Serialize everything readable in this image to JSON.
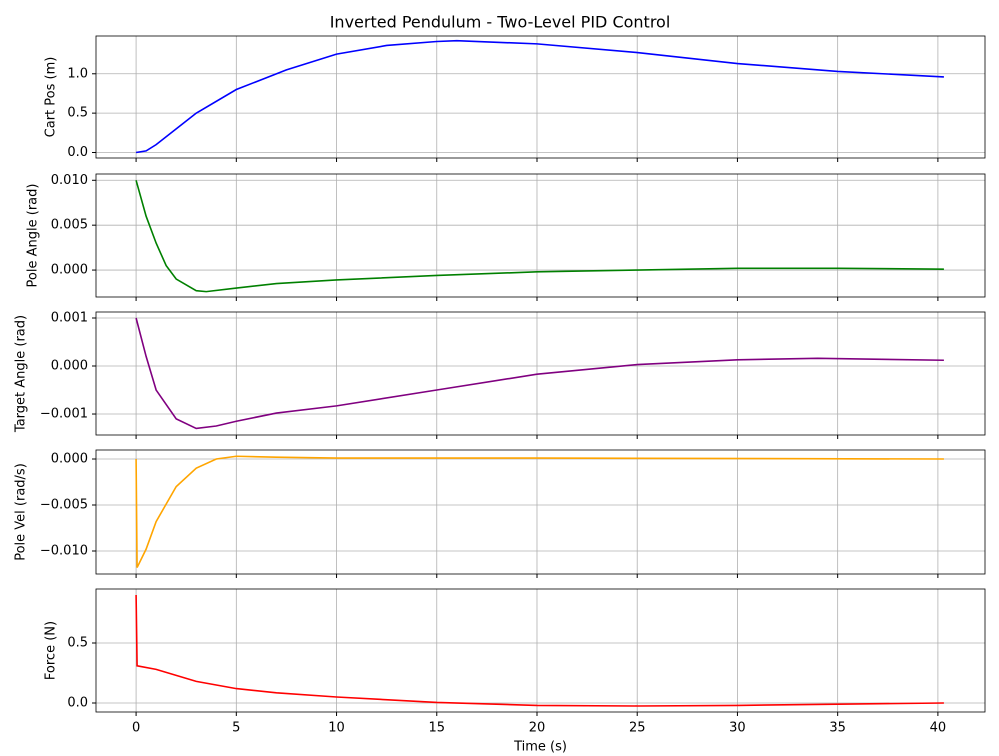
{
  "chart_data": [
    {
      "type": "line",
      "title": "Inverted Pendulum - Two-Level PID Control",
      "ylabel": "Cart Pos (m)",
      "color": "#0000ff",
      "grid": true,
      "x": [
        0,
        0.5,
        1,
        2,
        3,
        5,
        7.5,
        10,
        12.5,
        15,
        16,
        20,
        25,
        30,
        35,
        40.3
      ],
      "values": [
        0,
        0.02,
        0.1,
        0.3,
        0.5,
        0.8,
        1.05,
        1.25,
        1.36,
        1.41,
        1.42,
        1.38,
        1.27,
        1.13,
        1.03,
        0.96
      ],
      "xlim": [
        -2.0,
        42.35
      ],
      "xticks": [
        0,
        5,
        10,
        15,
        20,
        25,
        30,
        35,
        40
      ],
      "ylim": [
        -0.07,
        1.48
      ],
      "yticks": [
        {
          "value": 0,
          "label": "0.0"
        },
        {
          "value": 0.5,
          "label": "0.5"
        },
        {
          "value": 1,
          "label": "1.0"
        }
      ]
    },
    {
      "type": "line",
      "ylabel": "Pole Angle (rad)",
      "color": "#008000",
      "grid": true,
      "x": [
        0,
        0.5,
        1,
        1.5,
        2,
        3,
        3.5,
        5,
        7,
        10,
        15,
        20,
        25,
        30,
        35,
        40.3
      ],
      "values": [
        0.01,
        0.006,
        0.003,
        0.0005,
        -0.001,
        -0.0023,
        -0.0024,
        -0.002,
        -0.0015,
        -0.0011,
        -0.0006,
        -0.0002,
        0.0,
        0.0002,
        0.0002,
        0.0001
      ],
      "xlim": [
        -2.0,
        42.35
      ],
      "xticks": [
        0,
        5,
        10,
        15,
        20,
        25,
        30,
        35,
        40
      ],
      "ylim": [
        -0.003,
        0.0107
      ],
      "yticks": [
        {
          "value": 0,
          "label": "0.000"
        },
        0.005,
        {
          "value": 0.01,
          "label": "0.010"
        }
      ]
    },
    {
      "type": "line",
      "ylabel": "Target Angle (rad)",
      "color": "#800080",
      "grid": true,
      "x": [
        0,
        0.5,
        1,
        2,
        3,
        4,
        5,
        7,
        10,
        15,
        20,
        25,
        30,
        34,
        40.3
      ],
      "values": [
        0.001,
        0.0002,
        -0.0005,
        -0.0011,
        -0.0013,
        -0.00125,
        -0.00115,
        -0.00098,
        -0.00083,
        -0.0005,
        -0.00017,
        3e-05,
        0.00013,
        0.00016,
        0.00012
      ],
      "xlim": [
        -2.0,
        42.35
      ],
      "xticks": [
        0,
        5,
        10,
        15,
        20,
        25,
        30,
        35,
        40
      ],
      "ylim": [
        -0.001437,
        0.001125
      ],
      "yticks": [
        {
          "value": -0.001,
          "label": "−0.001"
        },
        {
          "value": 0,
          "label": "0.000"
        },
        0.001
      ]
    },
    {
      "type": "line",
      "ylabel": "Pole Vel (rad/s)",
      "color": "#ffa500",
      "grid": true,
      "x": [
        0,
        0.05,
        0.5,
        1,
        2,
        3,
        4,
        5,
        7,
        10,
        20,
        40.3
      ],
      "values": [
        0,
        -0.0118,
        -0.0098,
        -0.0068,
        -0.003,
        -0.001,
        0.0,
        0.0003,
        0.0002,
        0.0001,
        0.0001,
        0.0
      ],
      "xlim": [
        -2.0,
        42.35
      ],
      "xticks": [
        0,
        5,
        10,
        15,
        20,
        25,
        30,
        35,
        40
      ],
      "ylim": [
        -0.0125,
        0.00098
      ],
      "yticks": [
        {
          "value": -0.01,
          "label": "−0.010"
        },
        {
          "value": -0.005,
          "label": "−0.005"
        },
        {
          "value": 0,
          "label": "0.000"
        }
      ]
    },
    {
      "type": "line",
      "ylabel": "Force (N)",
      "xlabel": "Time (s)",
      "color": "#ff0000",
      "grid": true,
      "x": [
        0,
        0.05,
        1,
        2,
        3,
        5,
        7,
        10,
        15,
        20,
        25,
        30,
        35,
        40.3
      ],
      "values": [
        0.9,
        0.31,
        0.28,
        0.23,
        0.18,
        0.12,
        0.085,
        0.05,
        0.005,
        -0.02,
        -0.025,
        -0.02,
        -0.01,
        0.0
      ],
      "xlim": [
        -2.0,
        42.35
      ],
      "xticks": [
        0,
        5,
        10,
        15,
        20,
        25,
        30,
        35,
        40
      ],
      "ylim": [
        -0.075,
        0.95
      ],
      "yticks": [
        {
          "value": 0,
          "label": "0.0"
        },
        {
          "value": 0.5,
          "label": "0.5"
        }
      ]
    }
  ]
}
